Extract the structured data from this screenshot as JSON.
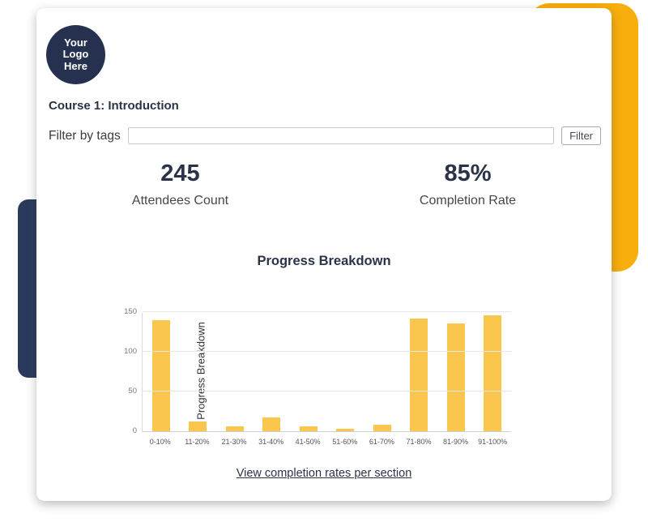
{
  "logo": {
    "line1": "Your",
    "line2": "Logo",
    "line3": "Here"
  },
  "course_title": "Course 1: Introduction",
  "filter": {
    "label": "Filter by tags",
    "input_value": "",
    "input_placeholder": "",
    "button_label": "Filter"
  },
  "stats": [
    {
      "value": "245",
      "label": "Attendees Count"
    },
    {
      "value": "85%",
      "label": "Completion Rate"
    }
  ],
  "link_label": "View completion rates per section",
  "colors": {
    "accent_yellow": "#F8AE0C",
    "navy_shape": "#2B3A5C",
    "bar_yellow": "#FBC64D",
    "text_dark": "#2B3349"
  },
  "chart_data": {
    "type": "bar",
    "title": "Progress Breakdown",
    "categories": [
      "0-10%",
      "11-20%",
      "21-30%",
      "31-40%",
      "41-50%",
      "51-60%",
      "61-70%",
      "71-80%",
      "81-90%",
      "91-100%"
    ],
    "values": [
      140,
      12,
      6,
      17,
      6,
      3,
      8,
      142,
      136,
      146
    ],
    "xlabel": "",
    "ylabel": "Progress Breakdown",
    "ylim": [
      0,
      150
    ],
    "yticks": [
      0,
      50,
      100,
      150
    ],
    "grid": true,
    "legend": false,
    "bar_color": "#FBC64D"
  }
}
